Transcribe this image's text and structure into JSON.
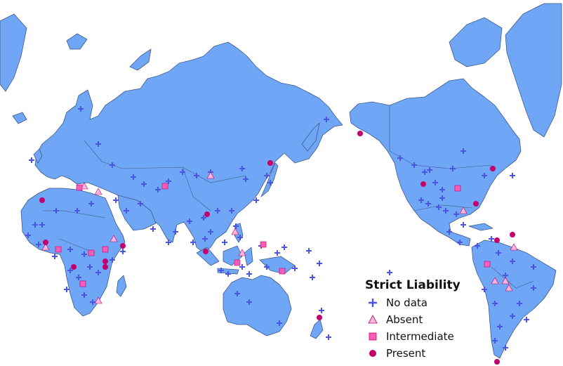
{
  "legend": {
    "title": "Strict Liability",
    "items": [
      {
        "key": "nodata",
        "label": "No data"
      },
      {
        "key": "absent",
        "label": "Absent"
      },
      {
        "key": "intermediate",
        "label": "Intermediate"
      },
      {
        "key": "present",
        "label": "Present"
      }
    ]
  },
  "colors": {
    "land": "#6fa6f5",
    "border": "#3f5a8c",
    "nodata": "#4a55e6",
    "absent": "#f7b8dd",
    "intermediate": "#f25fb7",
    "present": "#c4006e"
  }
}
